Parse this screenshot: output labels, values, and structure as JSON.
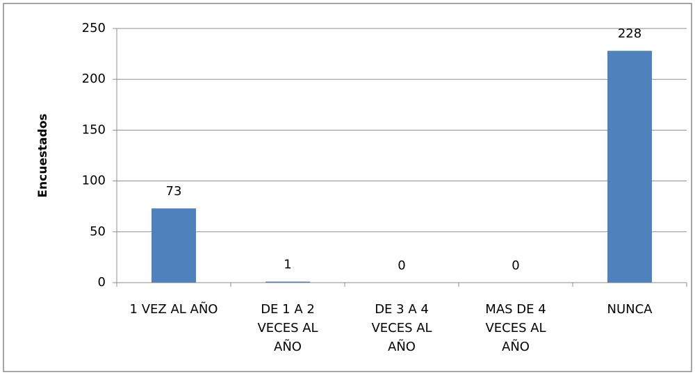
{
  "chart_data": {
    "type": "bar",
    "y_label": "Encuestados",
    "categories": [
      "1 VEZ AL AÑO",
      "DE 1 A 2 VECES AL AÑO",
      "DE 3 A 4 VECES AL AÑO",
      "MAS DE 4 VECES AL AÑO",
      "NUNCA"
    ],
    "values": [
      73,
      1,
      0,
      0,
      228
    ],
    "color": "#4f81bd",
    "ylim": [
      0,
      250
    ],
    "yticks": [
      0,
      50,
      100,
      150,
      200,
      250
    ],
    "grid": true
  }
}
